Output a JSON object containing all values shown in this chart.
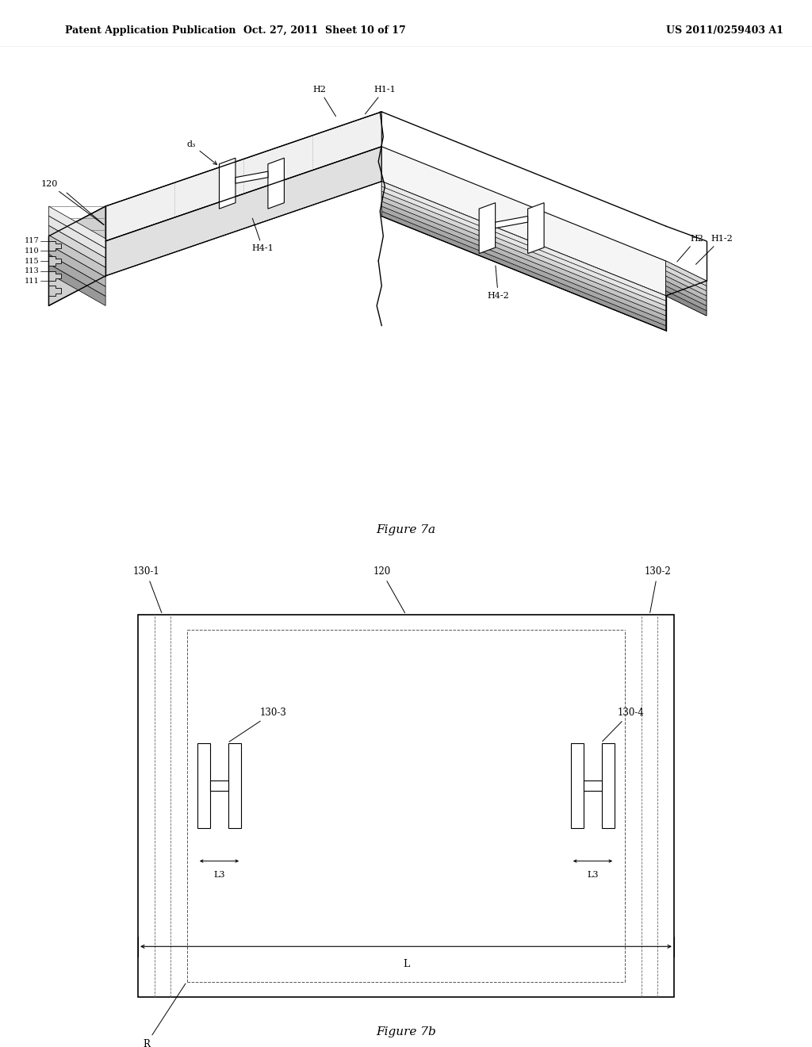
{
  "bg_color": "#ffffff",
  "header_left": "Patent Application Publication",
  "header_mid": "Oct. 27, 2011  Sheet 10 of 17",
  "header_right": "US 2011/0259403 A1",
  "fig7a_caption": "Figure 7a",
  "fig7b_caption": "Figure 7b"
}
